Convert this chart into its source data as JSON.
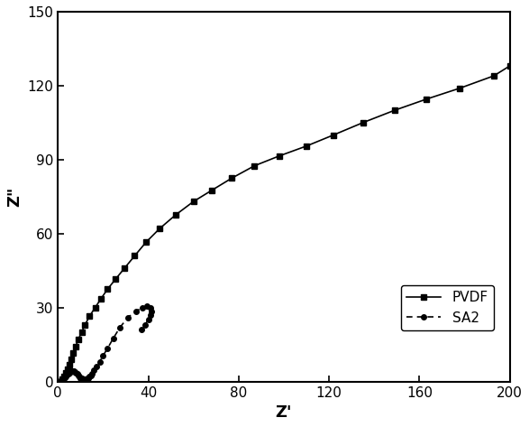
{
  "title": "",
  "xlabel": "Z'",
  "ylabel": "Z\"",
  "xlim": [
    0,
    200
  ],
  "ylim": [
    0,
    150
  ],
  "xticks": [
    0,
    40,
    80,
    120,
    160,
    200
  ],
  "yticks": [
    0,
    30,
    60,
    90,
    120,
    150
  ],
  "pvdf_x": [
    2.0,
    2.8,
    3.5,
    4.2,
    5.0,
    5.8,
    6.8,
    7.8,
    9.0,
    10.5,
    12.0,
    14.0,
    16.5,
    19.0,
    22.0,
    25.5,
    29.5,
    34.0,
    39.0,
    45.0,
    52.0,
    60.0,
    68.0,
    77.0,
    87.0,
    98.0,
    110.0,
    122.0,
    135.0,
    149.0,
    163.0,
    178.0,
    193.0,
    200.0
  ],
  "pvdf_y": [
    1.0,
    2.0,
    3.5,
    5.0,
    7.0,
    9.0,
    11.5,
    14.0,
    17.0,
    20.0,
    23.0,
    26.5,
    30.0,
    33.5,
    37.5,
    41.5,
    46.0,
    51.0,
    56.5,
    62.0,
    67.5,
    73.0,
    77.5,
    82.5,
    87.5,
    91.5,
    95.5,
    100.0,
    105.0,
    110.0,
    114.5,
    119.0,
    124.0,
    128.0
  ],
  "sa2_x": [
    1.0,
    1.5,
    2.0,
    2.5,
    3.0,
    3.5,
    4.0,
    4.5,
    5.0,
    5.5,
    6.0,
    6.5,
    7.0,
    7.5,
    8.0,
    8.5,
    9.0,
    9.5,
    10.0,
    10.5,
    11.0,
    11.5,
    12.0,
    12.5,
    13.0,
    13.5,
    14.0,
    14.5,
    15.0,
    16.0,
    17.0,
    18.5,
    20.0,
    22.0,
    24.5,
    27.5,
    31.0,
    34.5,
    37.5,
    39.5,
    41.0,
    41.5,
    41.0,
    40.0,
    38.5,
    37.0
  ],
  "sa2_y": [
    0.2,
    0.5,
    0.8,
    1.2,
    1.7,
    2.2,
    2.7,
    3.2,
    3.6,
    3.9,
    4.1,
    4.2,
    4.1,
    3.9,
    3.5,
    3.0,
    2.5,
    2.0,
    1.5,
    1.2,
    1.0,
    0.9,
    0.9,
    1.0,
    1.2,
    1.5,
    1.9,
    2.5,
    3.2,
    4.5,
    6.0,
    8.0,
    10.5,
    13.5,
    17.5,
    22.0,
    26.0,
    28.5,
    30.0,
    30.5,
    30.0,
    28.5,
    27.0,
    25.0,
    23.0,
    21.0
  ],
  "pvdf_color": "#000000",
  "sa2_color": "#000000",
  "pvdf_marker": "s",
  "sa2_marker": "o",
  "pvdf_linestyle": "-",
  "sa2_linestyle": "--",
  "pvdf_label": "PVDF",
  "sa2_label": "SA2",
  "pvdf_marker_size": 5,
  "sa2_marker_size": 4,
  "linewidth": 1.2,
  "background_color": "#ffffff"
}
